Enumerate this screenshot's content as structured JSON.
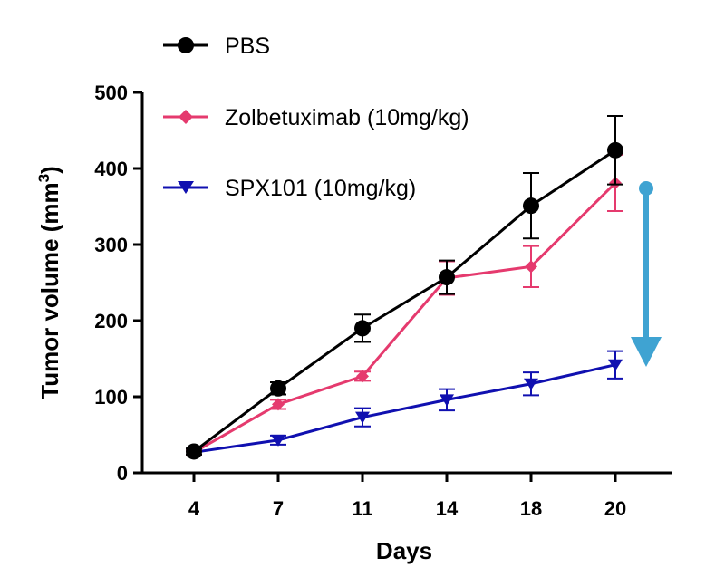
{
  "chart_data": {
    "type": "line",
    "xlabel": "Days",
    "ylabel": "Tumor volume (mm",
    "ylabel_sup": "3",
    "ylabel_close": ")",
    "categories": [
      "4",
      "7",
      "11",
      "14",
      "18",
      "20"
    ],
    "ylim": [
      0,
      500
    ],
    "yticks": [
      "0",
      "100",
      "200",
      "300",
      "400",
      "500"
    ],
    "legend_position": "top-left",
    "series": [
      {
        "name": "PBS",
        "color": "#000000",
        "marker": "circle",
        "values": [
          28,
          111,
          190,
          257,
          351,
          424
        ],
        "errors": [
          4,
          8,
          18,
          22,
          43,
          45
        ]
      },
      {
        "name": "Zolbetuximab (10mg/kg)",
        "color": "#E53A6E",
        "marker": "diamond",
        "values": [
          27,
          90,
          127,
          256,
          271,
          381
        ],
        "errors": [
          3,
          6,
          6,
          22,
          27,
          37
        ]
      },
      {
        "name": "SPX101 (10mg/kg)",
        "color": "#1010B0",
        "marker": "triangle-down",
        "values": [
          27,
          43,
          73,
          96,
          117,
          142
        ],
        "errors": [
          3,
          6,
          12,
          14,
          15,
          18
        ]
      }
    ],
    "annotation": {
      "type": "arrow",
      "color": "#3FA3D2",
      "direction": "down"
    }
  }
}
